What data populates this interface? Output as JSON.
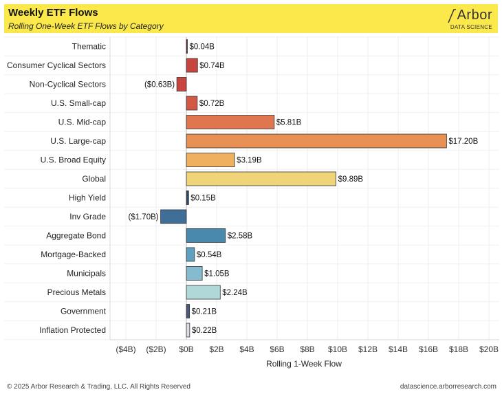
{
  "header": {
    "title": "Weekly ETF Flows",
    "subtitle": "Rolling One-Week ETF Flows by Category",
    "logo_word": "Arbor",
    "logo_sub": "DATA SCIENCE"
  },
  "footer": {
    "copyright": "© 2025 Arbor Research & Trading, LLC. All Rights Reserved",
    "website": "datascience.arborresearch.com"
  },
  "chart_data": {
    "type": "bar",
    "orientation": "horizontal",
    "xlabel": "Rolling 1-Week Flow",
    "ylabel": "",
    "xlim": [
      -4,
      20
    ],
    "x_tick_values": [
      -4,
      -2,
      0,
      2,
      4,
      6,
      8,
      10,
      12,
      14,
      16,
      18,
      20
    ],
    "x_tick_labels": [
      "($4B)",
      "($2B)",
      "$0B",
      "$2B",
      "$4B",
      "$6B",
      "$8B",
      "$10B",
      "$12B",
      "$14B",
      "$16B",
      "$18B",
      "$20B"
    ],
    "categories": [
      "Thematic",
      "Consumer Cyclical Sectors",
      "Non-Cyclical Sectors",
      "U.S. Small-cap",
      "U.S. Mid-cap",
      "U.S. Large-cap",
      "U.S. Broad Equity",
      "Global",
      "High Yield",
      "Inv Grade",
      "Aggregate Bond",
      "Mortgage-Backed",
      "Municipals",
      "Precious Metals",
      "Government",
      "Inflation Protected"
    ],
    "values": [
      0.04,
      0.74,
      -0.63,
      0.72,
      5.81,
      17.2,
      3.19,
      9.89,
      0.15,
      -1.7,
      2.58,
      0.54,
      1.05,
      2.24,
      0.21,
      0.22
    ],
    "data_labels": [
      "$0.04B",
      "$0.74B",
      "($0.63B)",
      "$0.72B",
      "$5.81B",
      "$17.20B",
      "$3.19B",
      "$9.89B",
      "$0.15B",
      "($1.70B)",
      "$2.58B",
      "$0.54B",
      "$1.05B",
      "$2.24B",
      "$0.21B",
      "$0.22B"
    ],
    "colors": [
      "#6e1f26",
      "#c8453f",
      "#c8453f",
      "#d25a45",
      "#df7650",
      "#e99054",
      "#efb05f",
      "#efd47a",
      "#2e4a6e",
      "#3f6f96",
      "#4889ad",
      "#5f9fc0",
      "#86bbcf",
      "#b0d8d8",
      "#4a5a78",
      "#d8dde6"
    ],
    "grid": true
  }
}
